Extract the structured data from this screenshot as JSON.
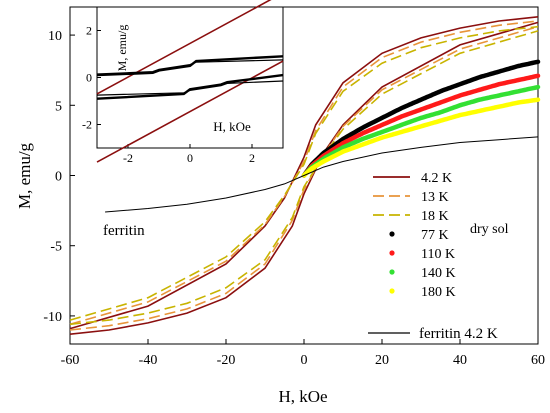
{
  "chart_data": {
    "type": "line",
    "xlabel": "H, kOe",
    "ylabel": "M, emu/g",
    "xlim": [
      -60,
      60
    ],
    "ylim": [
      -12,
      12
    ],
    "xticks": [
      -60,
      -40,
      -20,
      0,
      20,
      40,
      60
    ],
    "yticks": [
      -10,
      -5,
      0,
      5,
      10
    ],
    "grid": false,
    "annotations": [
      "ferritin",
      "dry sol"
    ],
    "legend": {
      "placement": "right",
      "entries": [
        {
          "label": "4.2 K",
          "style": "line",
          "color": "#8b0f0f"
        },
        {
          "label": "13 K",
          "style": "dash",
          "color": "#e8943a"
        },
        {
          "label": "18 K",
          "style": "dash",
          "color": "#c8b400"
        },
        {
          "label": "77 K",
          "style": "marker",
          "color": "#000000"
        },
        {
          "label": "110 K",
          "style": "marker",
          "color": "#ff1a1a"
        },
        {
          "label": "140 K",
          "style": "marker",
          "color": "#33e033"
        },
        {
          "label": "180 K",
          "style": "marker",
          "color": "#ffff00"
        },
        {
          "label": "ferritin 4.2 K",
          "style": "line",
          "color": "#000000"
        }
      ]
    },
    "series": [
      {
        "name": "4.2 K",
        "color": "#8b0f0f",
        "style": "line",
        "width": 1.6,
        "upper": {
          "x": [
            -60,
            -40,
            -20,
            -10,
            -5,
            0,
            3,
            10,
            20,
            30,
            40,
            50,
            60
          ],
          "y": [
            -10.9,
            -9.3,
            -6.3,
            -3.6,
            -1.6,
            1.3,
            3.6,
            6.6,
            8.7,
            9.8,
            10.5,
            11.0,
            11.3
          ]
        },
        "lower": {
          "x": [
            -60,
            -50,
            -40,
            -30,
            -20,
            -10,
            -3,
            0,
            5,
            10,
            20,
            40,
            60
          ],
          "y": [
            -11.3,
            -11.0,
            -10.5,
            -9.8,
            -8.7,
            -6.6,
            -3.6,
            -1.3,
            1.6,
            3.6,
            6.3,
            9.3,
            10.9
          ]
        }
      },
      {
        "name": "13 K",
        "color": "#e8943a",
        "style": "dash",
        "width": 1.6,
        "upper": {
          "x": [
            -60,
            -40,
            -20,
            -10,
            -5,
            0,
            3,
            10,
            20,
            30,
            40,
            50,
            60
          ],
          "y": [
            -10.6,
            -9.0,
            -6.1,
            -3.5,
            -1.5,
            1.0,
            3.2,
            6.3,
            8.4,
            9.5,
            10.2,
            10.7,
            11.0
          ]
        },
        "lower": {
          "x": [
            -60,
            -50,
            -40,
            -30,
            -20,
            -10,
            -3,
            0,
            5,
            10,
            20,
            40,
            60
          ],
          "y": [
            -11.0,
            -10.7,
            -10.2,
            -9.5,
            -8.4,
            -6.3,
            -3.2,
            -1.0,
            1.5,
            3.5,
            6.1,
            9.0,
            10.6
          ]
        }
      },
      {
        "name": "18 K",
        "color": "#c8b400",
        "style": "dash",
        "width": 1.6,
        "upper": {
          "x": [
            -60,
            -40,
            -20,
            -10,
            -5,
            0,
            3,
            10,
            20,
            30,
            40,
            50,
            60
          ],
          "y": [
            -10.3,
            -8.7,
            -5.8,
            -3.3,
            -1.4,
            0.8,
            3.0,
            6.0,
            8.0,
            9.1,
            9.8,
            10.3,
            10.6
          ]
        },
        "lower": {
          "x": [
            -60,
            -50,
            -40,
            -30,
            -20,
            -10,
            -3,
            0,
            5,
            10,
            20,
            40,
            60
          ],
          "y": [
            -10.6,
            -10.3,
            -9.8,
            -9.1,
            -8.0,
            -6.0,
            -3.0,
            -0.8,
            1.4,
            3.3,
            5.8,
            8.7,
            10.3
          ]
        }
      },
      {
        "name": "77 K",
        "color": "#000000",
        "style": "marker",
        "width": 4.5,
        "x": [
          0,
          2,
          5,
          10,
          15,
          20,
          25,
          30,
          35,
          40,
          45,
          50,
          55,
          60
        ],
        "y": [
          0,
          0.8,
          1.6,
          2.6,
          3.4,
          4.1,
          4.8,
          5.4,
          6.0,
          6.5,
          7.0,
          7.4,
          7.8,
          8.1
        ]
      },
      {
        "name": "110 K",
        "color": "#ff1a1a",
        "style": "marker",
        "width": 4.5,
        "x": [
          0,
          2,
          5,
          10,
          15,
          20,
          25,
          30,
          35,
          40,
          45,
          50,
          55,
          60
        ],
        "y": [
          0,
          0.7,
          1.4,
          2.3,
          3.0,
          3.6,
          4.2,
          4.7,
          5.2,
          5.7,
          6.1,
          6.5,
          6.8,
          7.1
        ]
      },
      {
        "name": "140 K",
        "color": "#33e033",
        "style": "marker",
        "width": 4.5,
        "x": [
          0,
          2,
          5,
          10,
          15,
          20,
          25,
          30,
          35,
          40,
          45,
          50,
          55,
          60
        ],
        "y": [
          0,
          0.6,
          1.2,
          2.0,
          2.6,
          3.1,
          3.6,
          4.1,
          4.5,
          5.0,
          5.4,
          5.7,
          6.0,
          6.3
        ]
      },
      {
        "name": "180 K",
        "color": "#ffff00",
        "style": "marker",
        "width": 4.5,
        "x": [
          0,
          2,
          5,
          10,
          15,
          20,
          25,
          30,
          35,
          40,
          45,
          50,
          55,
          60
        ],
        "y": [
          0,
          0.5,
          1.0,
          1.7,
          2.2,
          2.7,
          3.1,
          3.5,
          3.9,
          4.3,
          4.6,
          4.9,
          5.2,
          5.4
        ]
      },
      {
        "name": "ferritin 4.2 K",
        "color": "#000000",
        "style": "line",
        "width": 1.0,
        "x": [
          -51,
          -40,
          -30,
          -20,
          -10,
          -5,
          0,
          5,
          10,
          20,
          30,
          40,
          50,
          60
        ],
        "y": [
          -2.6,
          -2.35,
          -2.05,
          -1.6,
          -1.0,
          -0.6,
          0,
          0.6,
          1.0,
          1.6,
          2.0,
          2.35,
          2.55,
          2.75
        ]
      }
    ],
    "inset": {
      "xlabel": "H, kOe",
      "ylabel": "M, emu/g",
      "xlim": [
        -3,
        3
      ],
      "ylim": [
        -3,
        3
      ],
      "xticks": [
        -2,
        0,
        2
      ],
      "yticks": [
        -2,
        0,
        2
      ],
      "series": [
        {
          "name": "4.2 K",
          "color": "#8b0f0f",
          "width": 1.6,
          "x": [
            -3,
            3
          ],
          "upper": [
            -0.7,
            3.6
          ],
          "lower": [
            -3.6,
            0.7
          ]
        },
        {
          "name": "77 K",
          "color": "#000000",
          "width": 2.4,
          "upper": {
            "x": [
              -3,
              -1.2,
              -1.0,
              0,
              0.2,
              3
            ],
            "y": [
              0.1,
              0.2,
              0.3,
              0.5,
              0.7,
              0.9
            ]
          },
          "lower": {
            "x": [
              -3,
              -0.2,
              0,
              1.0,
              1.2,
              3
            ],
            "y": [
              -0.9,
              -0.7,
              -0.5,
              -0.3,
              -0.2,
              0.1
            ]
          }
        },
        {
          "name": "110 K",
          "color": "#000000",
          "width": 1.2,
          "upper": {
            "x": [
              -3,
              -1.2,
              -1.0,
              0,
              0.2,
              3
            ],
            "y": [
              0.15,
              0.25,
              0.35,
              0.55,
              0.65,
              0.75
            ]
          },
          "lower": {
            "x": [
              -3,
              -0.2,
              0,
              1.0,
              1.2,
              3
            ],
            "y": [
              -0.75,
              -0.65,
              -0.55,
              -0.35,
              -0.25,
              -0.15
            ]
          }
        }
      ]
    }
  }
}
